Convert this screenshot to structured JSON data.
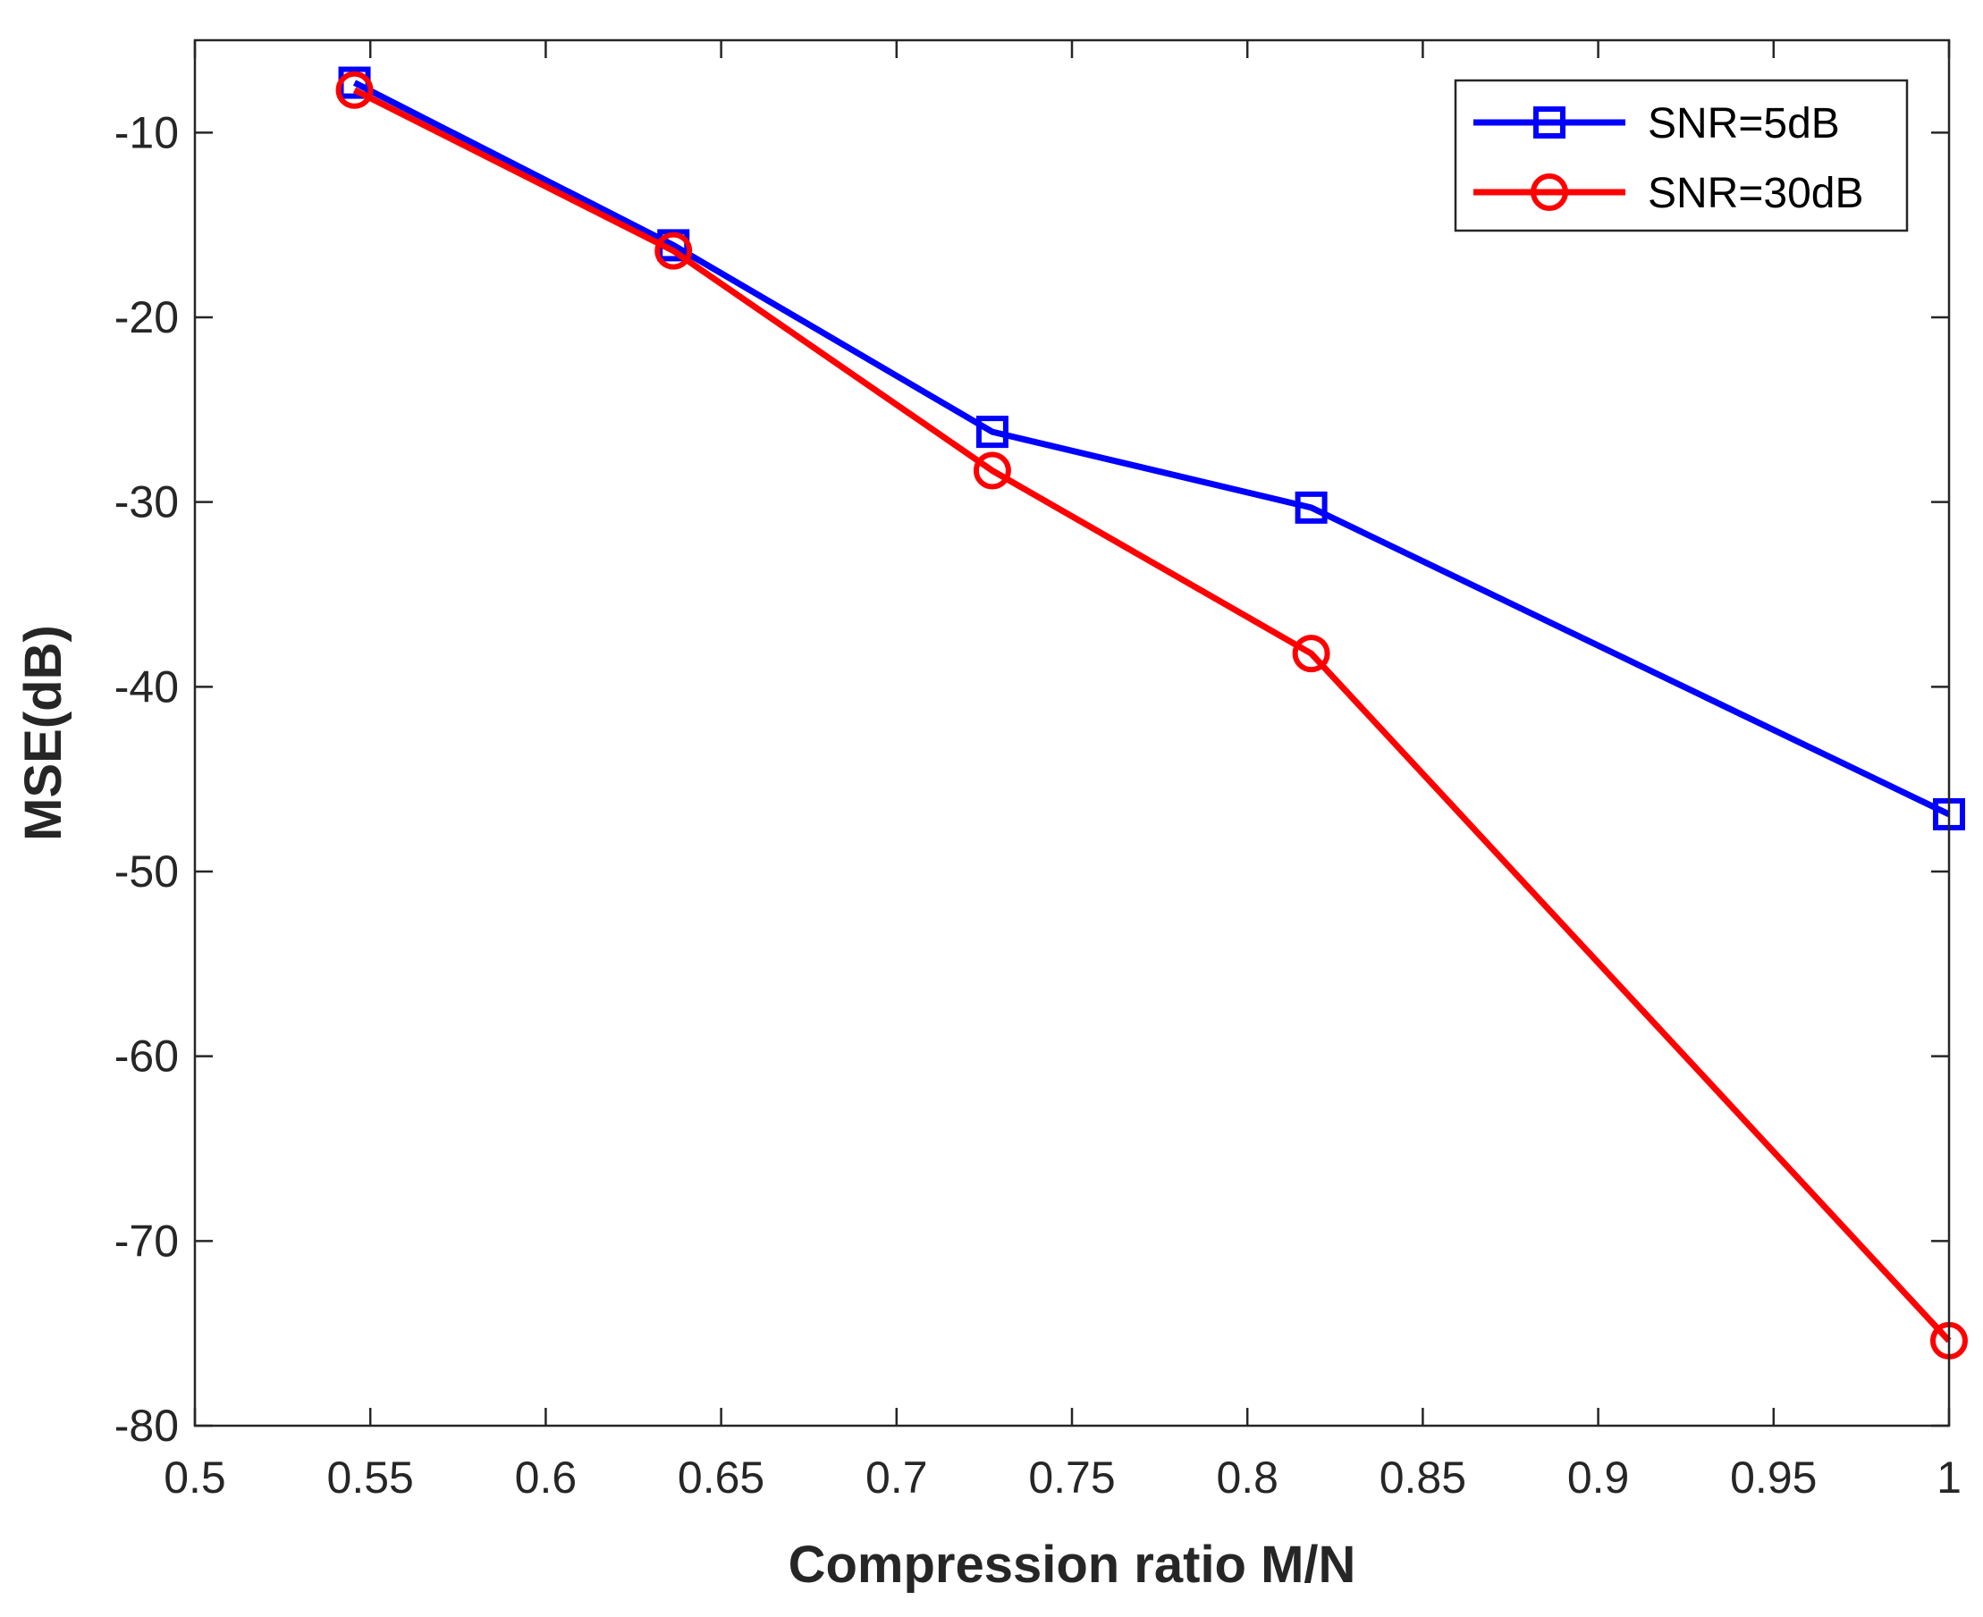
{
  "chart_data": {
    "type": "line",
    "title": "",
    "xlabel": "Compression ratio M/N",
    "ylabel": "MSE(dB)",
    "xlim": [
      0.5,
      1
    ],
    "ylim": [
      -80,
      -5
    ],
    "xticks": [
      0.5,
      0.55,
      0.6,
      0.65,
      0.7,
      0.75,
      0.8,
      0.85,
      0.9,
      0.95,
      1
    ],
    "xtick_labels": [
      "0.5",
      "0.55",
      "0.6",
      "0.65",
      "0.7",
      "0.75",
      "0.8",
      "0.85",
      "0.9",
      "0.95",
      "1"
    ],
    "yticks": [
      -10,
      -20,
      -30,
      -40,
      -50,
      -60,
      -70,
      -80
    ],
    "ytick_labels": [
      "-10",
      "-20",
      "-30",
      "-40",
      "-50",
      "-60",
      "-70",
      "-80"
    ],
    "grid": false,
    "legend_position": "top-right",
    "x": [
      0.5455,
      0.6364,
      0.7273,
      0.8182,
      1.0
    ],
    "series": [
      {
        "name": "SNR=5dB",
        "color": "#0000ff",
        "marker": "square",
        "values": [
          -7.3,
          -16.1,
          -26.2,
          -30.3,
          -46.9
        ]
      },
      {
        "name": "SNR=30dB",
        "color": "#ff0000",
        "marker": "circle",
        "values": [
          -7.7,
          -16.4,
          -28.3,
          -38.2,
          -75.4
        ]
      }
    ]
  }
}
